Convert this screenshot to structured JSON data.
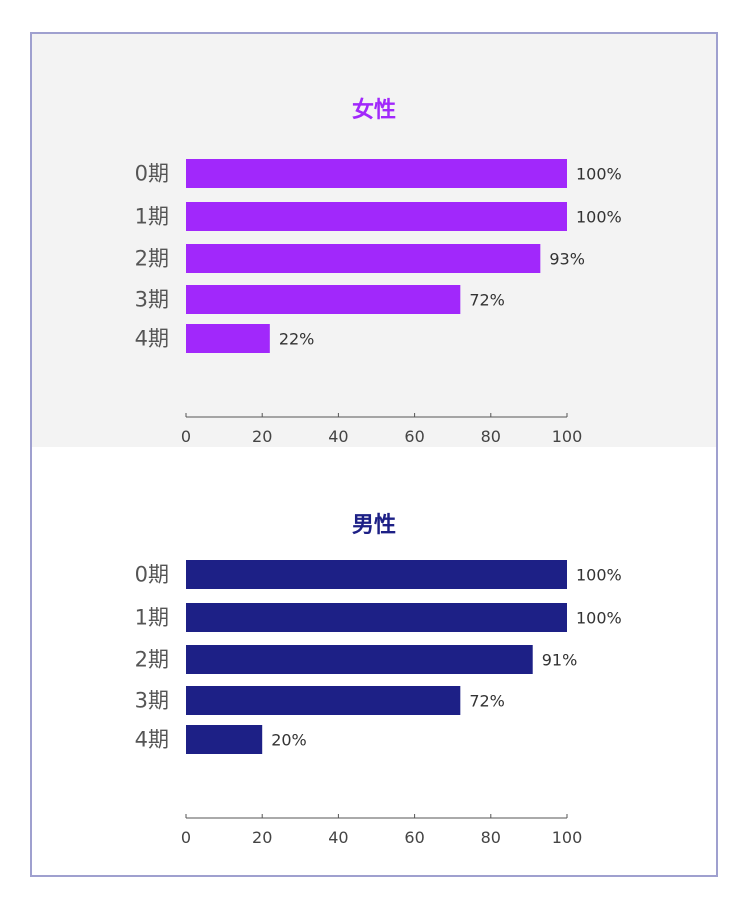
{
  "chart_data": [
    {
      "type": "bar",
      "orientation": "horizontal",
      "title": "女性",
      "color": "#a128fb",
      "categories": [
        "0期",
        "1期",
        "2期",
        "3期",
        "4期"
      ],
      "values": [
        100,
        100,
        93,
        72,
        22
      ],
      "value_labels": [
        "100%",
        "100%",
        "93%",
        "72%",
        "22%"
      ],
      "xlim": [
        0,
        100
      ],
      "xticks": [
        "0",
        "20",
        "40",
        "60",
        "80",
        "100"
      ],
      "grid": false
    },
    {
      "type": "bar",
      "orientation": "horizontal",
      "title": "男性",
      "color": "#1d2086",
      "categories": [
        "0期",
        "1期",
        "2期",
        "3期",
        "4期"
      ],
      "values": [
        100,
        100,
        91,
        72,
        20
      ],
      "value_labels": [
        "100%",
        "100%",
        "91%",
        "72%",
        "20%"
      ],
      "xlim": [
        0,
        100
      ],
      "xticks": [
        "0",
        "20",
        "40",
        "60",
        "80",
        "100"
      ],
      "grid": false
    }
  ]
}
